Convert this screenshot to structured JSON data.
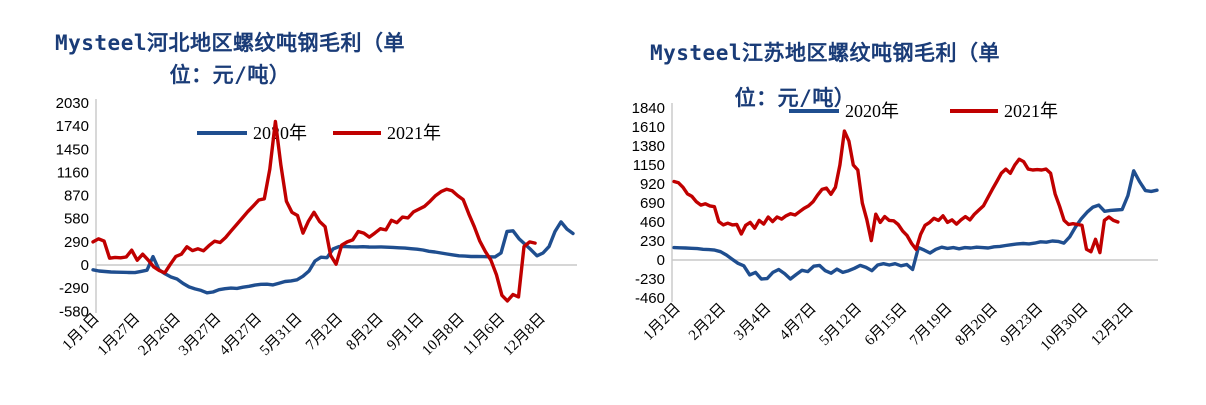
{
  "figure": {
    "background": "#ffffff",
    "accent_title_color": "#1A3C78",
    "series_2020_color": "#1F4E8F",
    "series_2021_color": "#C00000",
    "gridline_color": "#C8C8C8",
    "axis_line_color": "#D4D4D4"
  },
  "charts": [
    {
      "id": "hebei",
      "title_line1": "Mysteel河北地区螺纹吨钢毛利（单",
      "title_line2": "位：元/吨）",
      "full_title": "Mysteel河北地区螺纹吨钢毛利（单位：元/吨）",
      "legend": [
        {
          "label": "2020年",
          "color": "#1F4E8F"
        },
        {
          "label": "2021年",
          "color": "#C00000"
        }
      ],
      "chart_data": {
        "type": "line",
        "unit": "元/吨",
        "title": "Mysteel河北地区螺纹吨钢毛利（单位：元/吨）",
        "ylim": [
          -580,
          2030
        ],
        "y_ticks": [
          2030,
          1740,
          1450,
          1160,
          870,
          580,
          290,
          0,
          -290,
          -580
        ],
        "x_tick_labels": [
          "1月1日",
          "1月27日",
          "2月26日",
          "3月27日",
          "4月27日",
          "5月31日",
          "7月2日",
          "8月2日",
          "9月1日",
          "10月8日",
          "11月6日",
          "12月8日"
        ],
        "grid": "zero-line-only",
        "legend_position": "top-inside",
        "series": [
          {
            "name": "2020年",
            "color": "#1F4E8F",
            "span_pct": [
              0,
              100
            ],
            "values": [
              -60,
              -75,
              -82,
              -88,
              -90,
              -92,
              -94,
              -95,
              -80,
              -65,
              105,
              -60,
              -110,
              -150,
              -175,
              -230,
              -275,
              -300,
              -318,
              -348,
              -338,
              -310,
              -297,
              -289,
              -293,
              -278,
              -267,
              -252,
              -242,
              -241,
              -249,
              -228,
              -207,
              -199,
              -185,
              -140,
              -75,
              50,
              98,
              92,
              200,
              231,
              232,
              228,
              227,
              229,
              226,
              224,
              227,
              223,
              221,
              215,
              212,
              204,
              198,
              188,
              172,
              163,
              150,
              138,
              127,
              115,
              111,
              106,
              107,
              105,
              103,
              102,
              150,
              420,
              428,
              330,
              260,
              190,
              115,
              150,
              230,
              420,
              540,
              450,
              395
            ]
          },
          {
            "name": "2021年",
            "color": "#C00000",
            "span_pct": [
              0,
              92.1
            ],
            "values": [
              290,
              328,
              300,
              85,
              95,
              90,
              100,
              185,
              60,
              135,
              60,
              -25,
              -70,
              -98,
              10,
              108,
              135,
              228,
              180,
              203,
              178,
              243,
              298,
              282,
              345,
              428,
              508,
              588,
              668,
              740,
              815,
              830,
              1200,
              1800,
              1250,
              800,
              660,
              620,
              400,
              550,
              660,
              545,
              480,
              120,
              10,
              250,
              290,
              315,
              420,
              400,
              350,
              400,
              455,
              440,
              560,
              530,
              600,
              590,
              665,
              700,
              735,
              800,
              870,
              920,
              950,
              930,
              870,
              820,
              640,
              480,
              300,
              170,
              60,
              -120,
              -380,
              -450,
              -370,
              -400,
              230,
              290,
              275
            ]
          }
        ]
      }
    },
    {
      "id": "jiangsu",
      "title_line1": "Mysteel江苏地区螺纹吨钢毛利（单",
      "title_line2": "位：元/吨）",
      "full_title": "Mysteel江苏地区螺纹吨钢毛利（单位：元/吨）",
      "legend": [
        {
          "label": "2020年",
          "color": "#1F4E8F"
        },
        {
          "label": "2021年",
          "color": "#C00000"
        }
      ],
      "chart_data": {
        "type": "line",
        "unit": "元/吨",
        "title": "Mysteel江苏地区螺纹吨钢毛利（单位：元/吨）",
        "ylim": [
          -460,
          1840
        ],
        "y_ticks": [
          1840,
          1610,
          1380,
          1150,
          920,
          690,
          460,
          230,
          0,
          -230,
          -460
        ],
        "x_tick_labels": [
          "1月2日",
          "2月2日",
          "3月4日",
          "4月7日",
          "5月12日",
          "6月15日",
          "7月19日",
          "8月20日",
          "9月23日",
          "10月30日",
          "12月2日"
        ],
        "grid": "zero-line-only",
        "legend_position": "top-inside",
        "series": [
          {
            "name": "2020年",
            "color": "#1F4E8F",
            "span_pct": [
              0,
              100
            ],
            "values": [
              150,
              148,
              145,
              142,
              138,
              130,
              126,
              120,
              100,
              60,
              10,
              -40,
              -70,
              -180,
              -150,
              -230,
              -225,
              -150,
              -115,
              -165,
              -230,
              -175,
              -125,
              -140,
              -75,
              -65,
              -130,
              -160,
              -110,
              -150,
              -130,
              -100,
              -65,
              -90,
              -130,
              -60,
              -45,
              -60,
              -45,
              -70,
              -55,
              -115,
              150,
              120,
              85,
              130,
              155,
              140,
              150,
              135,
              150,
              145,
              155,
              150,
              145,
              160,
              165,
              175,
              185,
              195,
              200,
              195,
              205,
              220,
              215,
              230,
              225,
              205,
              280,
              400,
              500,
              580,
              640,
              665,
              590,
              600,
              605,
              610,
              780,
              1080,
              950,
              840,
              830,
              845
            ]
          },
          {
            "name": "2021年",
            "color": "#C00000",
            "span_pct": [
              0,
              91.9
            ],
            "values": [
              950,
              935,
              880,
              800,
              770,
              705,
              665,
              680,
              655,
              645,
              465,
              425,
              445,
              425,
              430,
              315,
              420,
              455,
              385,
              480,
              435,
              520,
              465,
              520,
              495,
              535,
              560,
              545,
              585,
              625,
              655,
              705,
              785,
              855,
              870,
              795,
              880,
              1150,
              1560,
              1440,
              1150,
              1090,
              690,
              490,
              235,
              555,
              455,
              525,
              480,
              475,
              430,
              350,
              295,
              200,
              130,
              310,
              420,
              455,
              505,
              480,
              535,
              455,
              485,
              435,
              485,
              525,
              485,
              555,
              605,
              655,
              755,
              855,
              950,
              1050,
              1100,
              1050,
              1150,
              1220,
              1190,
              1100,
              1090,
              1095,
              1090,
              1100,
              1050,
              800,
              650,
              480,
              430,
              440,
              430,
              420,
              130,
              100,
              250,
              90,
              480,
              520,
              480,
              460
            ]
          }
        ]
      }
    }
  ]
}
